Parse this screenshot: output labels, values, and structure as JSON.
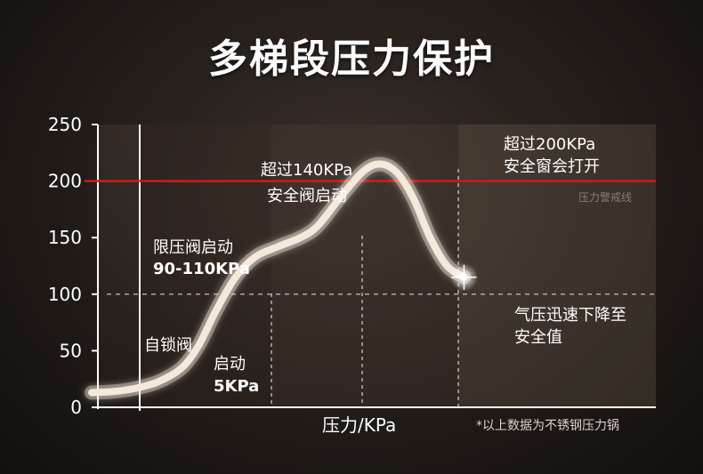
{
  "title": "多梯段压力保护",
  "footnote": "*以上数据为不锈钢压力锅",
  "warning_line_label": "压力警戒线",
  "colors": {
    "warning_line": "#d01a1a",
    "curve": "#f3e9dc"
  },
  "chart_data": {
    "type": "line",
    "title": "多梯段压力保护",
    "xlabel": "压力/KPa",
    "ylabel": "",
    "ylim": [
      0,
      250
    ],
    "yticks": [
      0,
      50,
      100,
      150,
      200,
      250
    ],
    "grid": false,
    "reference_lines": [
      {
        "y": 200,
        "label": "压力警戒线",
        "style": "solid-red"
      },
      {
        "y": 100,
        "style": "dashed"
      }
    ],
    "series": [
      {
        "points": [
          [
            0.0,
            13
          ],
          [
            0.04,
            14
          ],
          [
            0.08,
            17
          ],
          [
            0.12,
            23
          ],
          [
            0.16,
            35
          ],
          [
            0.19,
            55
          ],
          [
            0.22,
            85
          ],
          [
            0.255,
            115
          ],
          [
            0.29,
            133
          ],
          [
            0.33,
            142
          ],
          [
            0.37,
            150
          ],
          [
            0.4,
            160
          ],
          [
            0.44,
            185
          ],
          [
            0.48,
            208
          ],
          [
            0.51,
            215
          ],
          [
            0.54,
            208
          ],
          [
            0.57,
            185
          ],
          [
            0.6,
            150
          ],
          [
            0.63,
            125
          ],
          [
            0.66,
            115
          ]
        ]
      }
    ],
    "annotations": [
      {
        "id": "self-lock",
        "lines": [
          "自锁阀"
        ]
      },
      {
        "id": "start",
        "lines": [
          "启动",
          "5KPa"
        ]
      },
      {
        "id": "limit-valve",
        "lines": [
          "限压阀启动",
          "90-110KPa"
        ]
      },
      {
        "id": "safety-valve",
        "lines": [
          "超过140KPa",
          "安全阀启动"
        ]
      },
      {
        "id": "safety-window",
        "lines": [
          "超过200KPa",
          "安全窗会打开"
        ]
      },
      {
        "id": "drop",
        "lines": [
          "气压迅速下降至",
          "安全值"
        ]
      }
    ]
  }
}
